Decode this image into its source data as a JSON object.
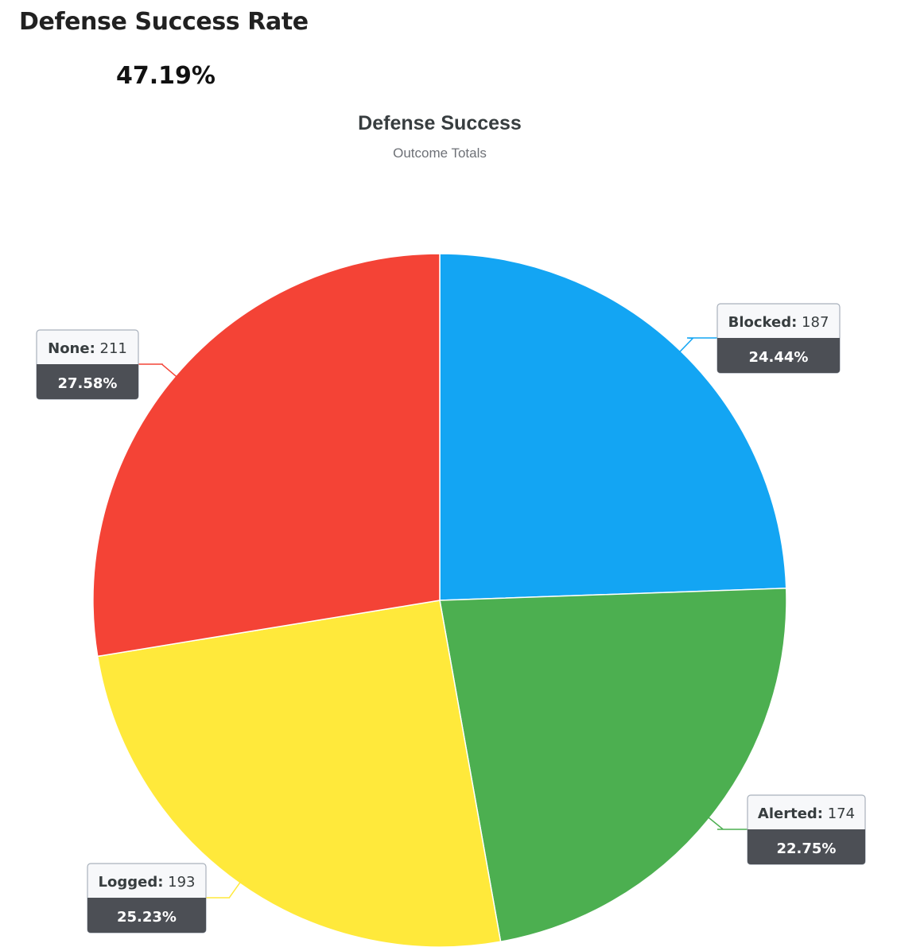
{
  "widget": {
    "title": "Defense Success Rate",
    "value": "47.19%"
  },
  "chart_data": {
    "type": "pie",
    "title": "Defense Success",
    "subtitle": "Outcome Totals",
    "start_angle_deg": 0,
    "direction": "clockwise",
    "labels": [
      "Blocked",
      "Alerted",
      "Logged",
      "None"
    ],
    "values": [
      187,
      174,
      193,
      211
    ],
    "percent_labels": [
      "24.44%",
      "22.75%",
      "25.23%",
      "27.58%"
    ],
    "colors": [
      "#13a5f3",
      "#4caf50",
      "#ffe93b",
      "#f44336"
    ],
    "label_box": {
      "header_fill": "#f7f8fa",
      "header_border": "#a9b1bc",
      "footer_fill": "#4c4f55"
    },
    "legend": "none"
  }
}
